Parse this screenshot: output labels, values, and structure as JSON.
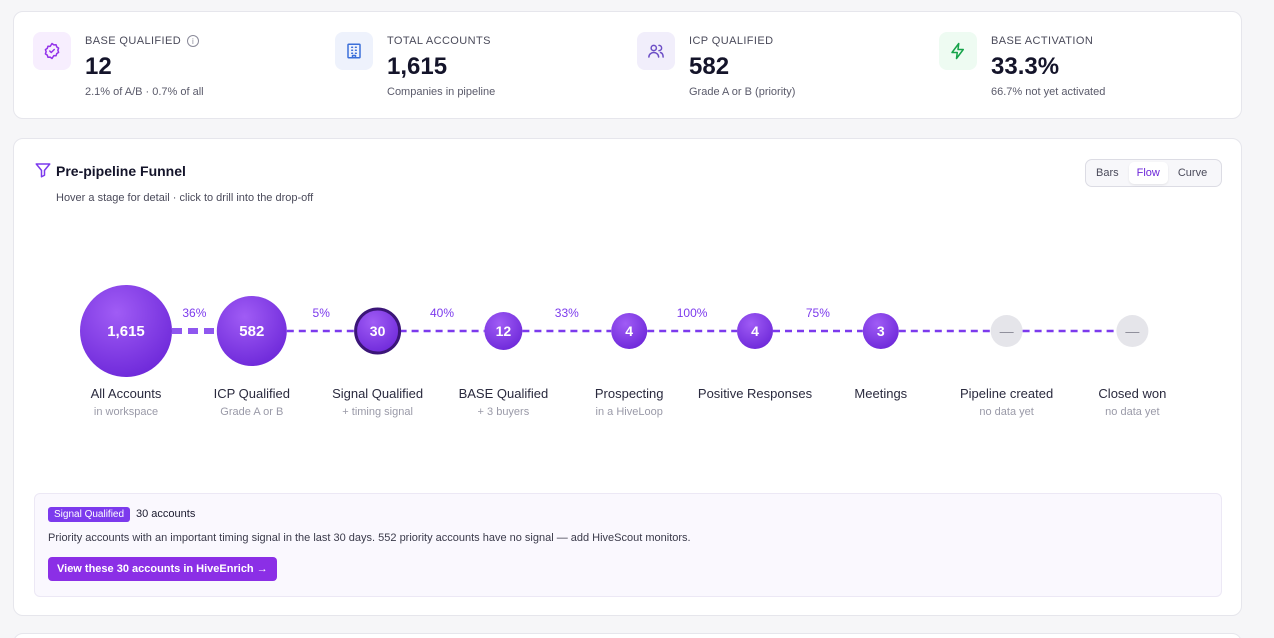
{
  "kpis": [
    {
      "label": "BASE QUALIFIED",
      "value": "12",
      "sub": "2.1% of A/B · 0.7% of all",
      "icon": "badge-check-icon",
      "icon_color": "#9333ea",
      "icon_bg": "#f7eefe",
      "info": "i"
    },
    {
      "label": "TOTAL ACCOUNTS",
      "value": "1,615",
      "sub": "Companies in pipeline",
      "icon": "building-icon",
      "icon_color": "#3b6fd9",
      "icon_bg": "#eef2fc"
    },
    {
      "label": "ICP QUALIFIED",
      "value": "582",
      "sub": "Grade A or B (priority)",
      "icon": "users-icon",
      "icon_color": "#6d4fc6",
      "icon_bg": "#f1eefb"
    },
    {
      "label": "BASE ACTIVATION",
      "value": "33.3%",
      "sub": "66.7% not yet activated",
      "icon": "bolt-icon",
      "icon_color": "#16a34a",
      "icon_bg": "#eefbf2"
    }
  ],
  "funnel": {
    "title": "Pre-pipeline Funnel",
    "subtitle": "Hover a stage for detail · click to drill into the drop-off",
    "views": [
      "Bars",
      "Flow",
      "Curve"
    ],
    "active_view": "Flow",
    "stages": [
      {
        "name": "All Accounts",
        "sub": "in workspace",
        "value": "1,615",
        "count": 1615
      },
      {
        "name": "ICP Qualified",
        "sub": "Grade A or B",
        "value": "582",
        "count": 582
      },
      {
        "name": "Signal Qualified",
        "sub": "+ timing signal",
        "value": "30",
        "count": 30,
        "selected": true
      },
      {
        "name": "BASE Qualified",
        "sub": "+ 3 buyers",
        "value": "12",
        "count": 12
      },
      {
        "name": "Prospecting",
        "sub": "in a HiveLoop",
        "value": "4",
        "count": 4
      },
      {
        "name": "Positive Responses",
        "sub": "",
        "value": "4",
        "count": 4
      },
      {
        "name": "Meetings",
        "sub": "",
        "value": "3",
        "count": 3
      },
      {
        "name": "Pipeline created",
        "sub": "no data yet",
        "value": "—",
        "count": null
      },
      {
        "name": "Closed won",
        "sub": "no data yet",
        "value": "—",
        "count": null
      }
    ],
    "conversions": [
      "36%",
      "5%",
      "40%",
      "33%",
      "100%",
      "75%"
    ]
  },
  "detail": {
    "badge": "Signal Qualified",
    "count": "30 accounts",
    "description": "Priority accounts with an important timing signal in the last 30 days. 552 priority accounts have no signal — add HiveScout monitors.",
    "button": "View these 30 accounts in HiveEnrich →"
  },
  "colors": {
    "accent": "#7c3aed",
    "node": "#8b3ff0",
    "empty_node": "#e5e5ea"
  }
}
